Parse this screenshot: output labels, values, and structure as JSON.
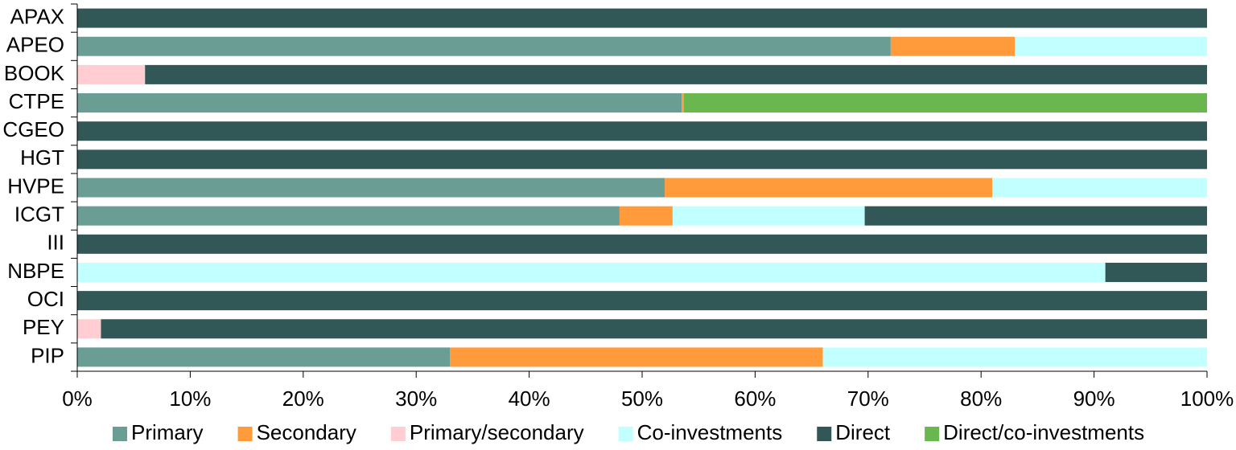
{
  "chart_data": {
    "type": "stacked-barh",
    "categories": [
      "APAX",
      "APEO",
      "BOOK",
      "CTPE",
      "CGEO",
      "HGT",
      "HVPE",
      "ICGT",
      "III",
      "NBPE",
      "OCI",
      "PEY",
      "PIP"
    ],
    "series": [
      {
        "name": "Primary",
        "color": "#6a9e94",
        "values": [
          0,
          72,
          0,
          53.5,
          0,
          0,
          52,
          48,
          0,
          0,
          0,
          0,
          33
        ]
      },
      {
        "name": "Secondary",
        "color": "#ff9b3a",
        "values": [
          0,
          11,
          0,
          0.2,
          0,
          0,
          29,
          4.7,
          0,
          0,
          0,
          0,
          33
        ]
      },
      {
        "name": "Primary/secondary",
        "color": "#ffcdd2",
        "values": [
          0,
          0,
          6,
          0,
          0,
          0,
          0,
          0,
          0,
          0,
          0,
          2.1,
          0
        ]
      },
      {
        "name": "Co-investments",
        "color": "#c2ffff",
        "values": [
          0,
          17,
          0,
          0,
          0,
          0,
          19,
          17,
          0,
          91,
          0,
          0,
          34
        ]
      },
      {
        "name": "Direct",
        "color": "#315856",
        "values": [
          100,
          0,
          94,
          0,
          100,
          100,
          0,
          30.3,
          100,
          9,
          100,
          97.9,
          0
        ]
      },
      {
        "name": "Direct/co-investments",
        "color": "#6ab74f",
        "values": [
          0,
          0,
          0,
          46.3,
          0,
          0,
          0,
          0,
          0,
          0,
          0,
          0,
          0
        ]
      }
    ],
    "xlim": [
      0,
      100
    ],
    "xticks": [
      {
        "value": 0,
        "label": "0%"
      },
      {
        "value": 10,
        "label": "10%"
      },
      {
        "value": 20,
        "label": "20%"
      },
      {
        "value": 30,
        "label": "30%"
      },
      {
        "value": 40,
        "label": "40%"
      },
      {
        "value": 50,
        "label": "50%"
      },
      {
        "value": 60,
        "label": "60%"
      },
      {
        "value": 70,
        "label": "70%"
      },
      {
        "value": 80,
        "label": "80%"
      },
      {
        "value": 90,
        "label": "90%"
      },
      {
        "value": 100,
        "label": "100%"
      }
    ],
    "legend": "bottom"
  }
}
